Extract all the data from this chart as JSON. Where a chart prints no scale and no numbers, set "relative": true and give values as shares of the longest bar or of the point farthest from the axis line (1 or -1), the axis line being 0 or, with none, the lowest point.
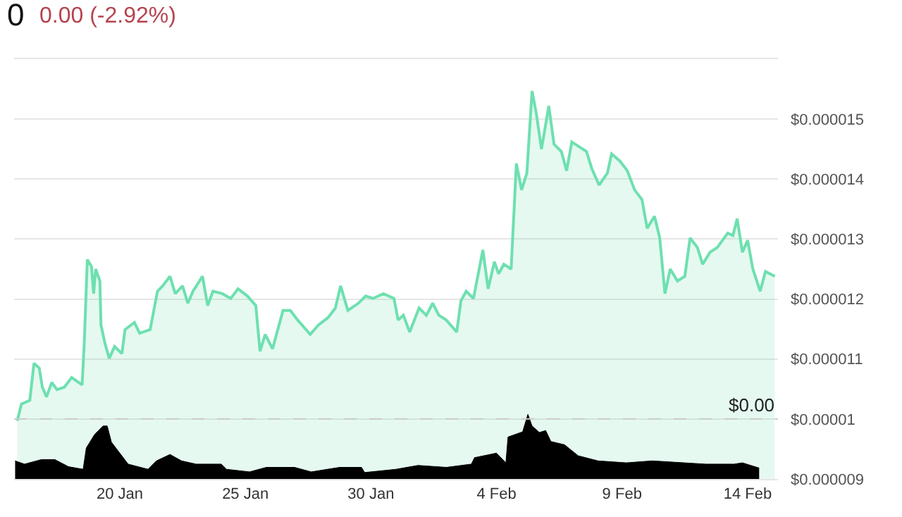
{
  "chart_data": [
    {
      "type": "area",
      "title": "0",
      "subtitle": "0.00 (-2.92%)",
      "x": [
        "--01-15T22:00",
        "--01-16T02:00",
        "--01-16T10:00",
        "--01-16T14:00",
        "--01-16T19:00",
        "--01-16T22:00",
        "--01-17T02:00",
        "--01-17T07:00",
        "--01-17T12:00",
        "--01-17T19:00",
        "--01-18T02:00",
        "--01-18T12:00",
        "--01-18T14:00",
        "--01-18T17:00",
        "--01-18T21:00",
        "--01-18T23:00",
        "--01-19T01:00",
        "--01-19T05:00",
        "--01-19T06:00",
        "--01-19T10:00",
        "--01-19T14:00",
        "--01-19T19:00",
        "--01-20T02:00",
        "--01-20T05:00",
        "--01-20T14:00",
        "--01-20T19:00",
        "--01-21T05:00",
        "--01-21T12:00",
        "--01-21T17:00",
        "--01-22T00:00",
        "--01-22T05:00",
        "--01-22T12:00",
        "--01-22T17:00",
        "--01-22T22:00",
        "--01-23T07:00",
        "--01-23T12:00",
        "--01-23T17:00",
        "--01-24T02:00",
        "--01-24T10:00",
        "--01-24T17:00",
        "--01-25T02:00",
        "--01-25T10:00",
        "--01-25T14:00",
        "--01-25T19:00",
        "--01-26T02:00",
        "--01-26T12:00",
        "--01-26T19:00",
        "--01-27T02:00",
        "--01-27T14:00",
        "--01-27T22:00",
        "--01-28T07:00",
        "--01-28T14:00",
        "--01-28T19:00",
        "--01-29T02:00",
        "--01-29T12:00",
        "--01-29T19:00",
        "--01-30T02:00",
        "--01-30T12:00",
        "--01-30T22:00",
        "--01-31T02:00",
        "--01-31T07:00",
        "--01-31T13:00",
        "--01-31T22:00",
        "--02-01T05:00",
        "--02-01T11:00",
        "--02-01T17:00",
        "--02-02T00:00",
        "--02-02T10:00",
        "--02-02T14:00",
        "--02-02T19:00",
        "--02-03T02:00",
        "--02-03T11:00",
        "--02-03T16:00",
        "--02-03T22:00",
        "--02-04T02:00",
        "--02-04T07:00",
        "--02-04T14:00",
        "--02-04T19:00",
        "--02-05T00:00",
        "--02-05T05:00",
        "--02-05T10:00",
        "--02-05T14:00",
        "--02-05T19:00",
        "--02-06T02:00",
        "--02-06T07:00",
        "--02-06T14:00",
        "--02-06T19:00",
        "--02-07T00:00",
        "--02-07T07:00",
        "--02-07T14:00",
        "--02-07T19:00",
        "--02-08T02:00",
        "--02-08T10:00",
        "--02-08T14:00",
        "--02-08T22:00",
        "--02-09T05:00",
        "--02-09T12:00",
        "--02-09T19:00",
        "--02-10T00:00",
        "--02-10T07:00",
        "--02-10T12:00",
        "--02-10T17:00",
        "--02-10T22:00",
        "--02-11T05:00",
        "--02-11T12:00",
        "--02-11T17:00",
        "--02-12T00:00",
        "--02-12T05:00",
        "--02-12T12:00",
        "--02-12T19:00",
        "--02-13T05:00",
        "--02-13T10:00",
        "--02-13T14:00",
        "--02-13T19:00",
        "--02-14T00:00",
        "--02-14T05:00",
        "--02-14T12:00",
        "--02-14T17:00",
        "--02-15T02:00"
      ],
      "series": [
        {
          "color": "#6ee0b0",
          "values": [
            9.97e-06,
            1.025e-05,
            1.031e-05,
            1.093e-05,
            1.085e-05,
            1.053e-05,
            1.037e-05,
            1.061e-05,
            1.049e-05,
            1.053e-05,
            1.069e-05,
            1.057e-05,
            1.125e-05,
            1.266e-05,
            1.254e-05,
            1.209e-05,
            1.25e-05,
            1.23e-05,
            1.157e-05,
            1.125e-05,
            1.101e-05,
            1.121e-05,
            1.109e-05,
            1.149e-05,
            1.161e-05,
            1.143e-05,
            1.149e-05,
            1.213e-05,
            1.222e-05,
            1.238e-05,
            1.209e-05,
            1.222e-05,
            1.193e-05,
            1.213e-05,
            1.238e-05,
            1.189e-05,
            1.213e-05,
            1.209e-05,
            1.201e-05,
            1.217e-05,
            1.205e-05,
            1.189e-05,
            1.113e-05,
            1.141e-05,
            1.117e-05,
            1.181e-05,
            1.181e-05,
            1.165e-05,
            1.141e-05,
            1.157e-05,
            1.169e-05,
            1.185e-05,
            1.222e-05,
            1.181e-05,
            1.193e-05,
            1.205e-05,
            1.201e-05,
            1.209e-05,
            1.201e-05,
            1.165e-05,
            1.173e-05,
            1.145e-05,
            1.185e-05,
            1.173e-05,
            1.193e-05,
            1.173e-05,
            1.165e-05,
            1.145e-05,
            1.197e-05,
            1.213e-05,
            1.201e-05,
            1.282e-05,
            1.217e-05,
            1.262e-05,
            1.242e-05,
            1.258e-05,
            1.25e-05,
            1.426e-05,
            1.382e-05,
            1.41e-05,
            1.547e-05,
            1.51e-05,
            1.45e-05,
            1.522e-05,
            1.458e-05,
            1.446e-05,
            1.414e-05,
            1.462e-05,
            1.454e-05,
            1.446e-05,
            1.418e-05,
            1.39e-05,
            1.41e-05,
            1.442e-05,
            1.43e-05,
            1.414e-05,
            1.382e-05,
            1.366e-05,
            1.318e-05,
            1.338e-05,
            1.302e-05,
            1.209e-05,
            1.25e-05,
            1.23e-05,
            1.238e-05,
            1.302e-05,
            1.286e-05,
            1.258e-05,
            1.278e-05,
            1.286e-05,
            1.31e-05,
            1.306e-05,
            1.334e-05,
            1.278e-05,
            1.298e-05,
            1.25e-05,
            1.213e-05,
            1.246e-05,
            1.238e-05
          ]
        }
      ],
      "xlim": [
        "--01-15T19:00",
        "--02-15T05:00"
      ],
      "xticks": [
        {
          "value": "--01-20",
          "label": "20 Jan"
        },
        {
          "value": "--01-25",
          "label": "25 Jan"
        },
        {
          "value": "--01-30",
          "label": "30 Jan"
        },
        {
          "value": "--02-04",
          "label": "4 Feb"
        },
        {
          "value": "--02-09",
          "label": "9 Feb"
        },
        {
          "value": "--02-14",
          "label": "14 Feb"
        }
      ],
      "ylim": [
        9e-06,
        1.6e-05
      ],
      "yticks": [
        {
          "value": 9e-06,
          "label": "$0.000009"
        },
        {
          "value": 1e-05,
          "label": "$0.00001"
        },
        {
          "value": 1.1e-05,
          "label": "$0.000011"
        },
        {
          "value": 1.2e-05,
          "label": "$0.000012"
        },
        {
          "value": 1.3e-05,
          "label": "$0.000013"
        },
        {
          "value": 1.4e-05,
          "label": "$0.000014"
        },
        {
          "value": 1.5e-05,
          "label": "$0.000015"
        },
        {
          "value": 1.6e-05,
          "label": null
        }
      ],
      "grid": "y",
      "ref_lines": [
        {
          "axis": "y",
          "value": 1e-05,
          "label": "$0.00",
          "color": "#cccccc",
          "line_style": "dashed"
        }
      ]
    },
    {
      "type": "area",
      "relative": true,
      "x": [
        "--01-15T20:00",
        "--01-16T05:00",
        "--01-16T21:00",
        "--01-17T10:00",
        "--01-17T23:00",
        "--01-18T13:00",
        "--01-18T16:00",
        "--01-19T00:00",
        "--01-19T08:00",
        "--01-19T12:00",
        "--01-19T16:00",
        "--01-20T00:00",
        "--01-20T08:00",
        "--01-21T03:00",
        "--01-21T11:00",
        "--01-22T00:00",
        "--01-22T11:00",
        "--01-23T01:00",
        "--01-24T01:00",
        "--01-24T06:00",
        "--01-25T04:00",
        "--01-25T20:00",
        "--01-26T23:00",
        "--01-27T15:00",
        "--01-28T18:00",
        "--01-29T15:00",
        "--01-29T18:00",
        "--01-31T00:00",
        "--01-31T21:00",
        "--02-02T00:00",
        "--02-03T00:00",
        "--02-03T03:00",
        "--02-04T00:00",
        "--02-04T09:00",
        "--02-04T11:00",
        "--02-05T01:00",
        "--02-05T06:00",
        "--02-05T10:00",
        "--02-05T17:00",
        "--02-05T23:00",
        "--02-06T04:00",
        "--02-06T17:00",
        "--02-07T06:00",
        "--02-08T01:00",
        "--02-09T04:00",
        "--02-10T05:00",
        "--02-12T08:00",
        "--02-13T11:00",
        "--02-13T19:00",
        "--02-14T11:00"
      ],
      "series": [
        {
          "color": "#000000",
          "values": [
            0.28,
            0.23,
            0.3,
            0.3,
            0.19,
            0.15,
            0.48,
            0.69,
            0.82,
            0.82,
            0.57,
            0.4,
            0.23,
            0.15,
            0.28,
            0.38,
            0.28,
            0.23,
            0.23,
            0.15,
            0.11,
            0.18,
            0.18,
            0.11,
            0.18,
            0.18,
            0.1,
            0.15,
            0.21,
            0.18,
            0.23,
            0.33,
            0.4,
            0.25,
            0.65,
            0.73,
            1,
            0.82,
            0.72,
            0.75,
            0.58,
            0.53,
            0.36,
            0.28,
            0.25,
            0.28,
            0.23,
            0.23,
            0.25,
            0.17
          ]
        }
      ],
      "xlim": [
        "--01-15T19:00",
        "--02-15T05:00"
      ]
    }
  ]
}
